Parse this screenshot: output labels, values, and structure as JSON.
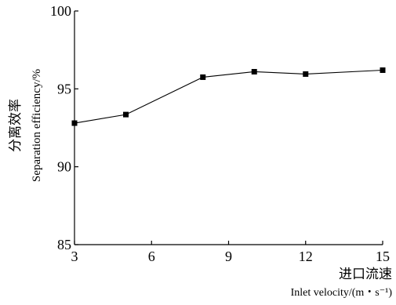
{
  "chart_data": {
    "type": "line",
    "x": [
      3,
      5,
      8,
      10,
      12,
      15
    ],
    "series": [
      {
        "values": [
          92.8,
          93.35,
          95.75,
          96.1,
          95.95,
          96.2
        ],
        "marker": "square",
        "color": "#000000"
      }
    ],
    "xlabel_zh": "进口流速",
    "xlabel": "Inlet velocity/(m・s⁻¹)",
    "ylabel_zh": "分离效率",
    "ylabel": "Separation efficiency/%",
    "xlim": [
      3,
      15
    ],
    "ylim": [
      85,
      100
    ],
    "xticks": [
      3,
      6,
      9,
      12,
      15
    ],
    "yticks": [
      85,
      90,
      95,
      100
    ],
    "grid": false,
    "axis_color": "#000000"
  }
}
